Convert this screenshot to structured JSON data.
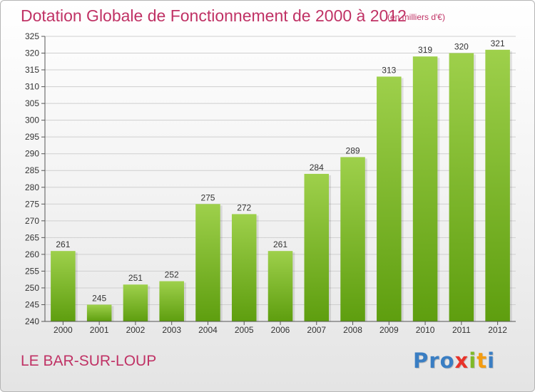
{
  "header": {
    "title": "Dotation Globale de Fonctionnement de 2000 à 2012",
    "unit": "(en milliers d'€)"
  },
  "footer": {
    "commune": "LE BAR-SUR-LOUP",
    "logo": {
      "letters": [
        "P",
        "r",
        "o",
        "x",
        "i",
        "t",
        "i"
      ],
      "colors": [
        "#3a7ec3",
        "#3a7ec3",
        "#3a7ec3",
        "#e8332a",
        "#7fb928",
        "#f39c12",
        "#3a7ec3"
      ]
    }
  },
  "colors": {
    "bar_top": "#9ed04b",
    "bar_bottom": "#5e9e0f",
    "title": "#c03265",
    "grid": "#cfcfcf"
  },
  "chart_data": {
    "type": "bar",
    "title": "Dotation Globale de Fonctionnement de 2000 à 2012",
    "subtitle": "(en milliers d'€)",
    "categories": [
      "2000",
      "2001",
      "2002",
      "2003",
      "2004",
      "2005",
      "2006",
      "2007",
      "2008",
      "2009",
      "2010",
      "2011",
      "2012"
    ],
    "values": [
      261,
      245,
      251,
      252,
      275,
      272,
      261,
      284,
      289,
      313,
      319,
      320,
      321
    ],
    "ylim": [
      240,
      325
    ],
    "yticks": [
      240,
      245,
      250,
      255,
      260,
      265,
      270,
      275,
      280,
      285,
      290,
      295,
      300,
      305,
      310,
      315,
      320,
      325
    ],
    "grid": true,
    "xlabel": "",
    "ylabel": ""
  }
}
